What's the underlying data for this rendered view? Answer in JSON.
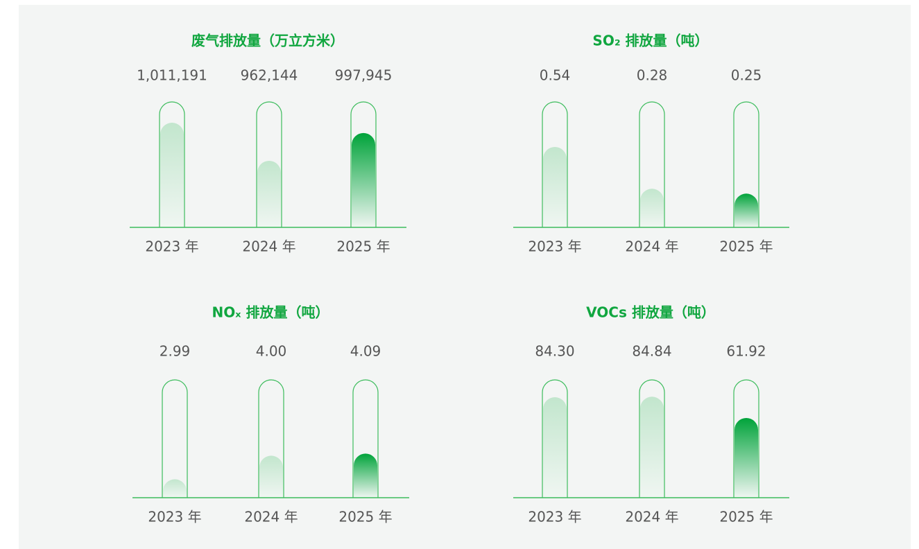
{
  "chart_data": [
    {
      "type": "bar",
      "title": "废气排放量（万立方米）",
      "categories": [
        "2023 年",
        "2024 年",
        "2025 年"
      ],
      "values": [
        1011191,
        962144,
        997945
      ],
      "value_labels": [
        "1,011,191",
        "962,144",
        "997,945"
      ],
      "colors": [
        "#c2e6cd",
        "#c2e6cd",
        "#00a33a"
      ],
      "ylim": [
        876500,
        1038000
      ]
    },
    {
      "type": "bar",
      "title": "SO₂ 排放量（吨）",
      "categories": [
        "2023 年",
        "2024 年",
        "2025 年"
      ],
      "values": [
        0.54,
        0.28,
        0.25
      ],
      "colors": [
        "#c2e6cd",
        "#c2e6cd",
        "#00a33a"
      ],
      "ylim": [
        0.04,
        0.82
      ]
    },
    {
      "type": "bar",
      "title": "NOₓ 排放量（吨）",
      "categories": [
        "2023 年",
        "2024 年",
        "2025 年"
      ],
      "values": [
        2.99,
        4.0,
        4.09
      ],
      "value_labels": [
        "2.99",
        "4.00",
        "4.09"
      ],
      "colors": [
        "#c2e6cd",
        "#c2e6cd",
        "#00a33a"
      ],
      "ylim": [
        2.2,
        7.25
      ]
    },
    {
      "type": "bar",
      "title": "VOCs 排放量（吨）",
      "categories": [
        "2023 年",
        "2024 年",
        "2025 年"
      ],
      "values": [
        84.3,
        84.84,
        61.92
      ],
      "value_labels": [
        "84.30",
        "84.84",
        "61.92"
      ],
      "colors": [
        "#c2e6cd",
        "#c2e6cd",
        "#00a33a"
      ],
      "ylim": [
        -24,
        103
      ]
    }
  ]
}
